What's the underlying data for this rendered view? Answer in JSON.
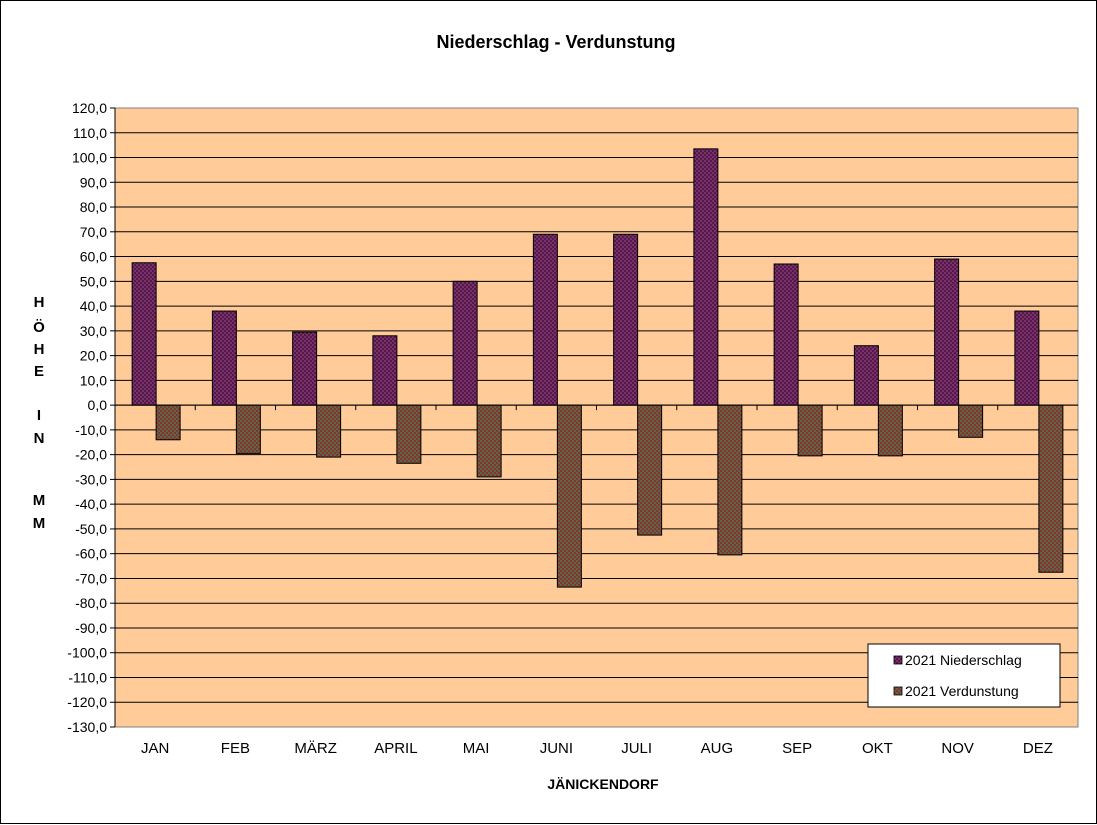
{
  "chart_data": {
    "type": "bar",
    "title": "Niederschlag  -  Verdunstung",
    "xlabel": "JÄNICKENDORF",
    "ylabel": "HÖHE IN MM",
    "ylabel_lines": [
      "H",
      "Ö",
      "H",
      "E",
      "",
      "I",
      "N",
      "",
      "M",
      "M"
    ],
    "ylim": [
      -130,
      120
    ],
    "ytick_step": 10,
    "grid": true,
    "legend_position": "bottom-right",
    "categories": [
      "JAN",
      "FEB",
      "MÄRZ",
      "APRIL",
      "MAI",
      "JUNI",
      "JULI",
      "AUG",
      "SEP",
      "OKT",
      "NOV",
      "DEZ"
    ],
    "series": [
      {
        "name": "2021 Niederschlag",
        "color": "#4b1440",
        "values": [
          57.5,
          38.0,
          29.5,
          28.0,
          50.0,
          69.0,
          69.0,
          103.5,
          57.0,
          24.0,
          59.0,
          38.0
        ]
      },
      {
        "name": "2021 Verdunstung",
        "color": "#8c2a2a",
        "values": [
          -14.0,
          -19.5,
          -21.0,
          -23.5,
          -29.0,
          -73.5,
          -52.5,
          -60.5,
          -20.5,
          -20.5,
          -13.0,
          -67.5
        ]
      }
    ],
    "plot_background": "#ffcc99"
  }
}
